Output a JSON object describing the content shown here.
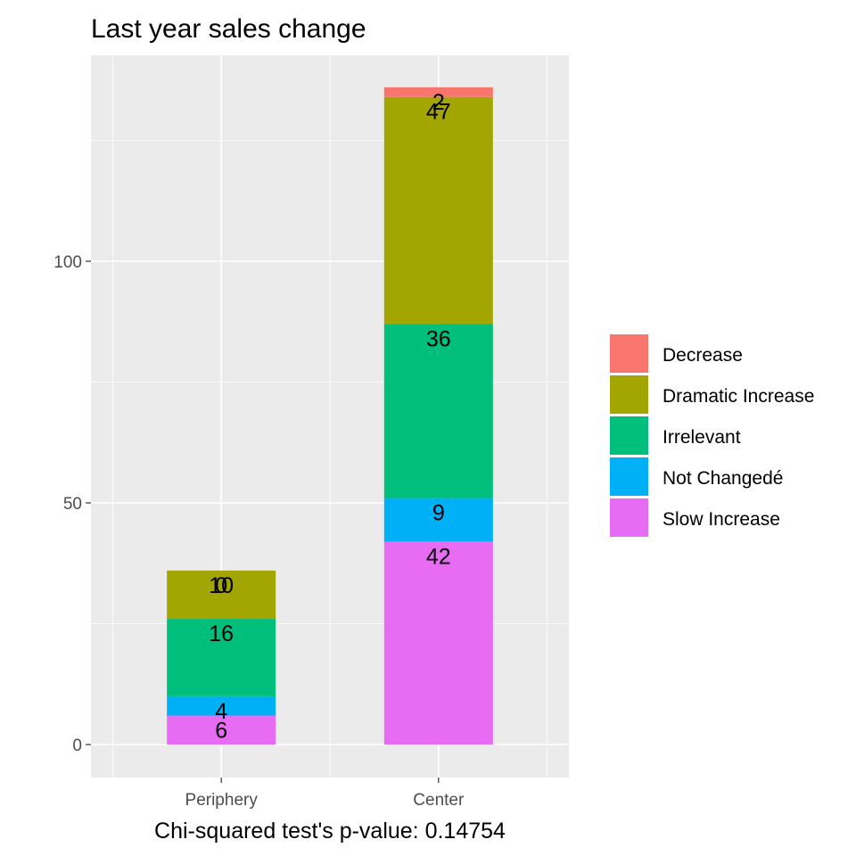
{
  "chart_data": {
    "type": "bar",
    "stacked": true,
    "title": "Last year sales change",
    "xlabel": "Chi-squared test's p-value: 0.14754",
    "ylabel": "",
    "categories": [
      "Periphery",
      "Center"
    ],
    "ylim": [
      -5,
      142
    ],
    "yticks": [
      0,
      50,
      100
    ],
    "grid": true,
    "legend_position": "right",
    "series": [
      {
        "name": "Slow Increase",
        "color": "#E76BF3",
        "values": [
          6,
          42
        ]
      },
      {
        "name": "Not Changedé",
        "color": "#00B0F6",
        "values": [
          4,
          9
        ]
      },
      {
        "name": "Irrelevant",
        "color": "#00BF7D",
        "values": [
          16,
          36
        ]
      },
      {
        "name": "Dramatic Increase",
        "color": "#A3A500",
        "values": [
          10,
          47
        ]
      },
      {
        "name": "Decrease",
        "color": "#F8766D",
        "values": [
          0,
          2
        ]
      }
    ],
    "legend_order": [
      "Decrease",
      "Dramatic Increase",
      "Irrelevant",
      "Not Changedé",
      "Slow Increase"
    ],
    "panel_background": "#EBEBEB",
    "grid_color": "#FFFFFF"
  }
}
